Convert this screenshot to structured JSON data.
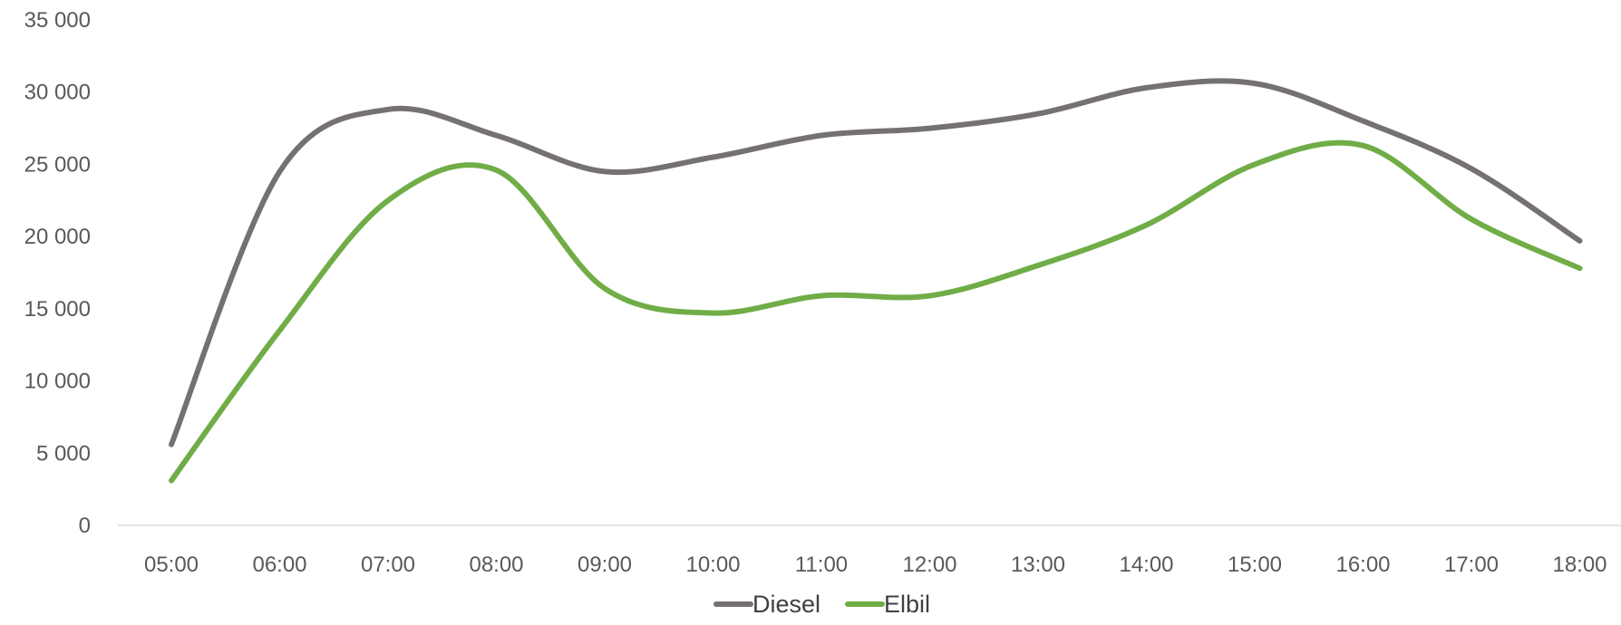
{
  "chart_data": {
    "type": "line",
    "title": "",
    "xlabel": "",
    "ylabel": "",
    "categories": [
      "05:00",
      "06:00",
      "07:00",
      "08:00",
      "09:00",
      "10:00",
      "11:00",
      "12:00",
      "13:00",
      "14:00",
      "15:00",
      "16:00",
      "17:00",
      "18:00"
    ],
    "y_ticks": [
      "0",
      "5 000",
      "10 000",
      "15 000",
      "20 000",
      "25 000",
      "30 000",
      "35 000"
    ],
    "ylim": [
      0,
      35000
    ],
    "grid": false,
    "smooth": true,
    "legend": "bottom",
    "series": [
      {
        "name": "Diesel",
        "color": "#767171",
        "values": [
          5600,
          24500,
          28800,
          27000,
          24500,
          25500,
          27000,
          27500,
          28500,
          30300,
          30600,
          28000,
          24700,
          19700
        ]
      },
      {
        "name": "Elbil",
        "color": "#70AD47",
        "values": [
          3100,
          13500,
          22500,
          24600,
          16400,
          14700,
          15900,
          15900,
          18000,
          20800,
          25000,
          26300,
          21200,
          17800
        ]
      }
    ]
  }
}
